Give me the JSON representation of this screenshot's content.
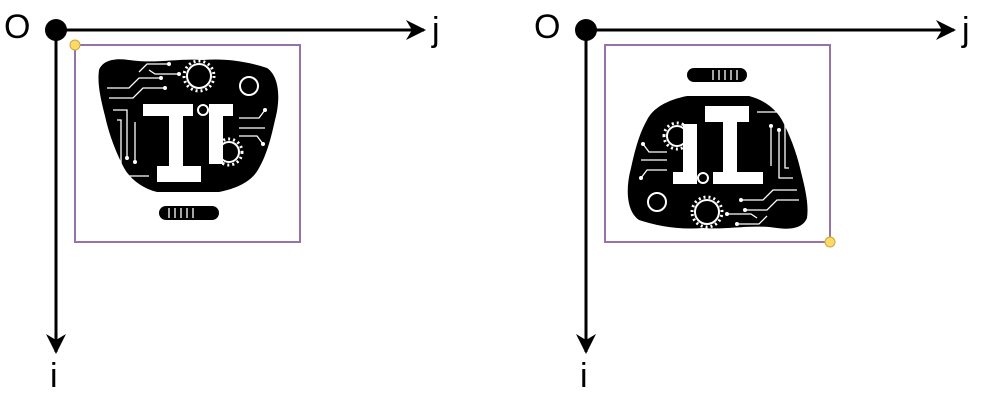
{
  "panels": [
    {
      "origin_label": "O",
      "j_label": "j",
      "i_label": "i",
      "image_orientation": "upright",
      "corner_marker": "top-left"
    },
    {
      "origin_label": "O",
      "j_label": "j",
      "i_label": "i",
      "image_orientation": "rotated-180",
      "corner_marker": "bottom-right"
    }
  ],
  "colors": {
    "axis": "#000000",
    "frame": "#9673a6",
    "marker": "#ffd966",
    "emblem": "#000000"
  },
  "icons": [
    "origin-dot",
    "axis-arrow",
    "circuit-gear-emblem",
    "corner-marker"
  ]
}
